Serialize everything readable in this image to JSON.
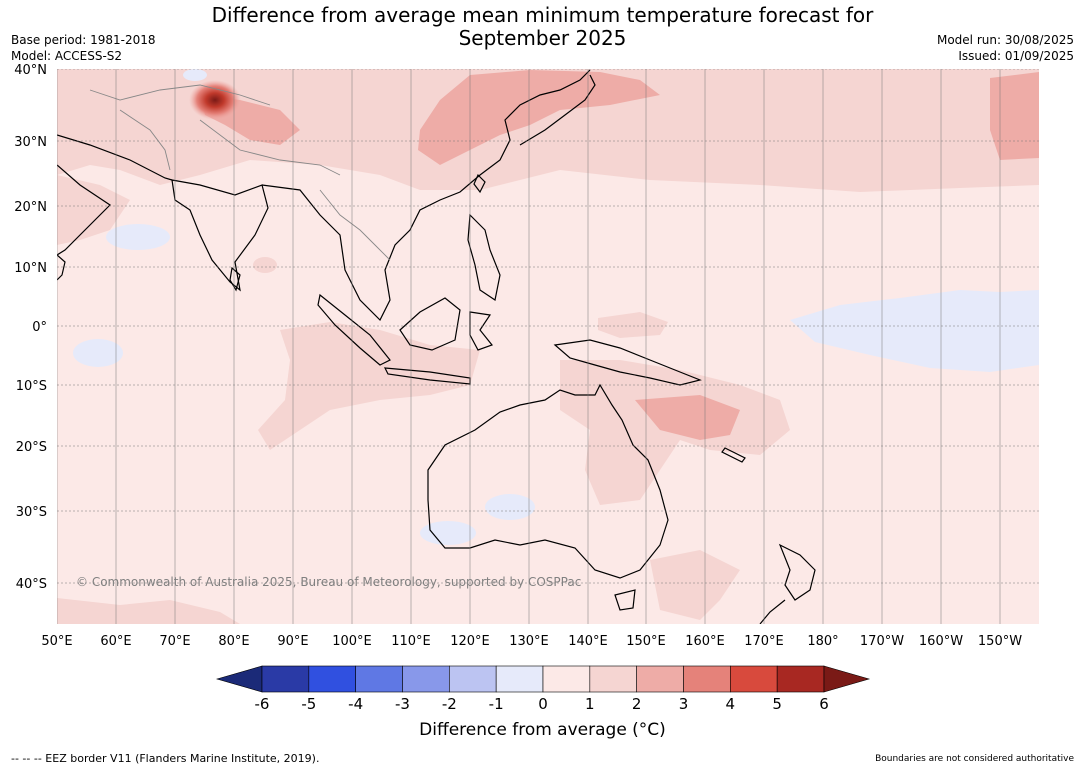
{
  "title_line1": "Difference from average mean minimum temperature forecast for",
  "title_line2": "September 2025",
  "base_period": "Base period: 1981-2018",
  "model": "Model: ACCESS-S2",
  "model_run": "Model run: 30/08/2025",
  "issued": "Issued: 01/09/2025",
  "copyright": "© Commonwealth of Australia 2025, Bureau of Meteorology, supported by COSPPac",
  "lat_labels": [
    "40°N",
    "30°N",
    "20°N",
    "10°N",
    "0°",
    "10°S",
    "20°S",
    "30°S",
    "40°S"
  ],
  "lon_labels": [
    "50°E",
    "60°E",
    "70°E",
    "80°E",
    "90°E",
    "100°E",
    "110°E",
    "120°E",
    "130°E",
    "140°E",
    "150°E",
    "160°E",
    "170°E",
    "180°",
    "170°W",
    "160°W",
    "150°W"
  ],
  "colorbar": {
    "ticks": [
      "-6",
      "-5",
      "-4",
      "-3",
      "-2",
      "-1",
      "0",
      "1",
      "2",
      "3",
      "4",
      "5",
      "6"
    ],
    "colors": [
      "#2a3aa6",
      "#3050e0",
      "#5f78e4",
      "#8898ea",
      "#bcc4f2",
      "#e6eafa",
      "#fce9e7",
      "#f5d5d2",
      "#eeaca7",
      "#e5827a",
      "#d84a3d",
      "#a82822"
    ],
    "under_color": "#1b2a78",
    "over_color": "#7a1a16",
    "label": "Difference from average (°C)"
  },
  "eez_note": "-- -- -- EEZ border V11 (Flanders Marine Institute, 2019).",
  "boundaries_note": "Boundaries are not considered authoritative"
}
